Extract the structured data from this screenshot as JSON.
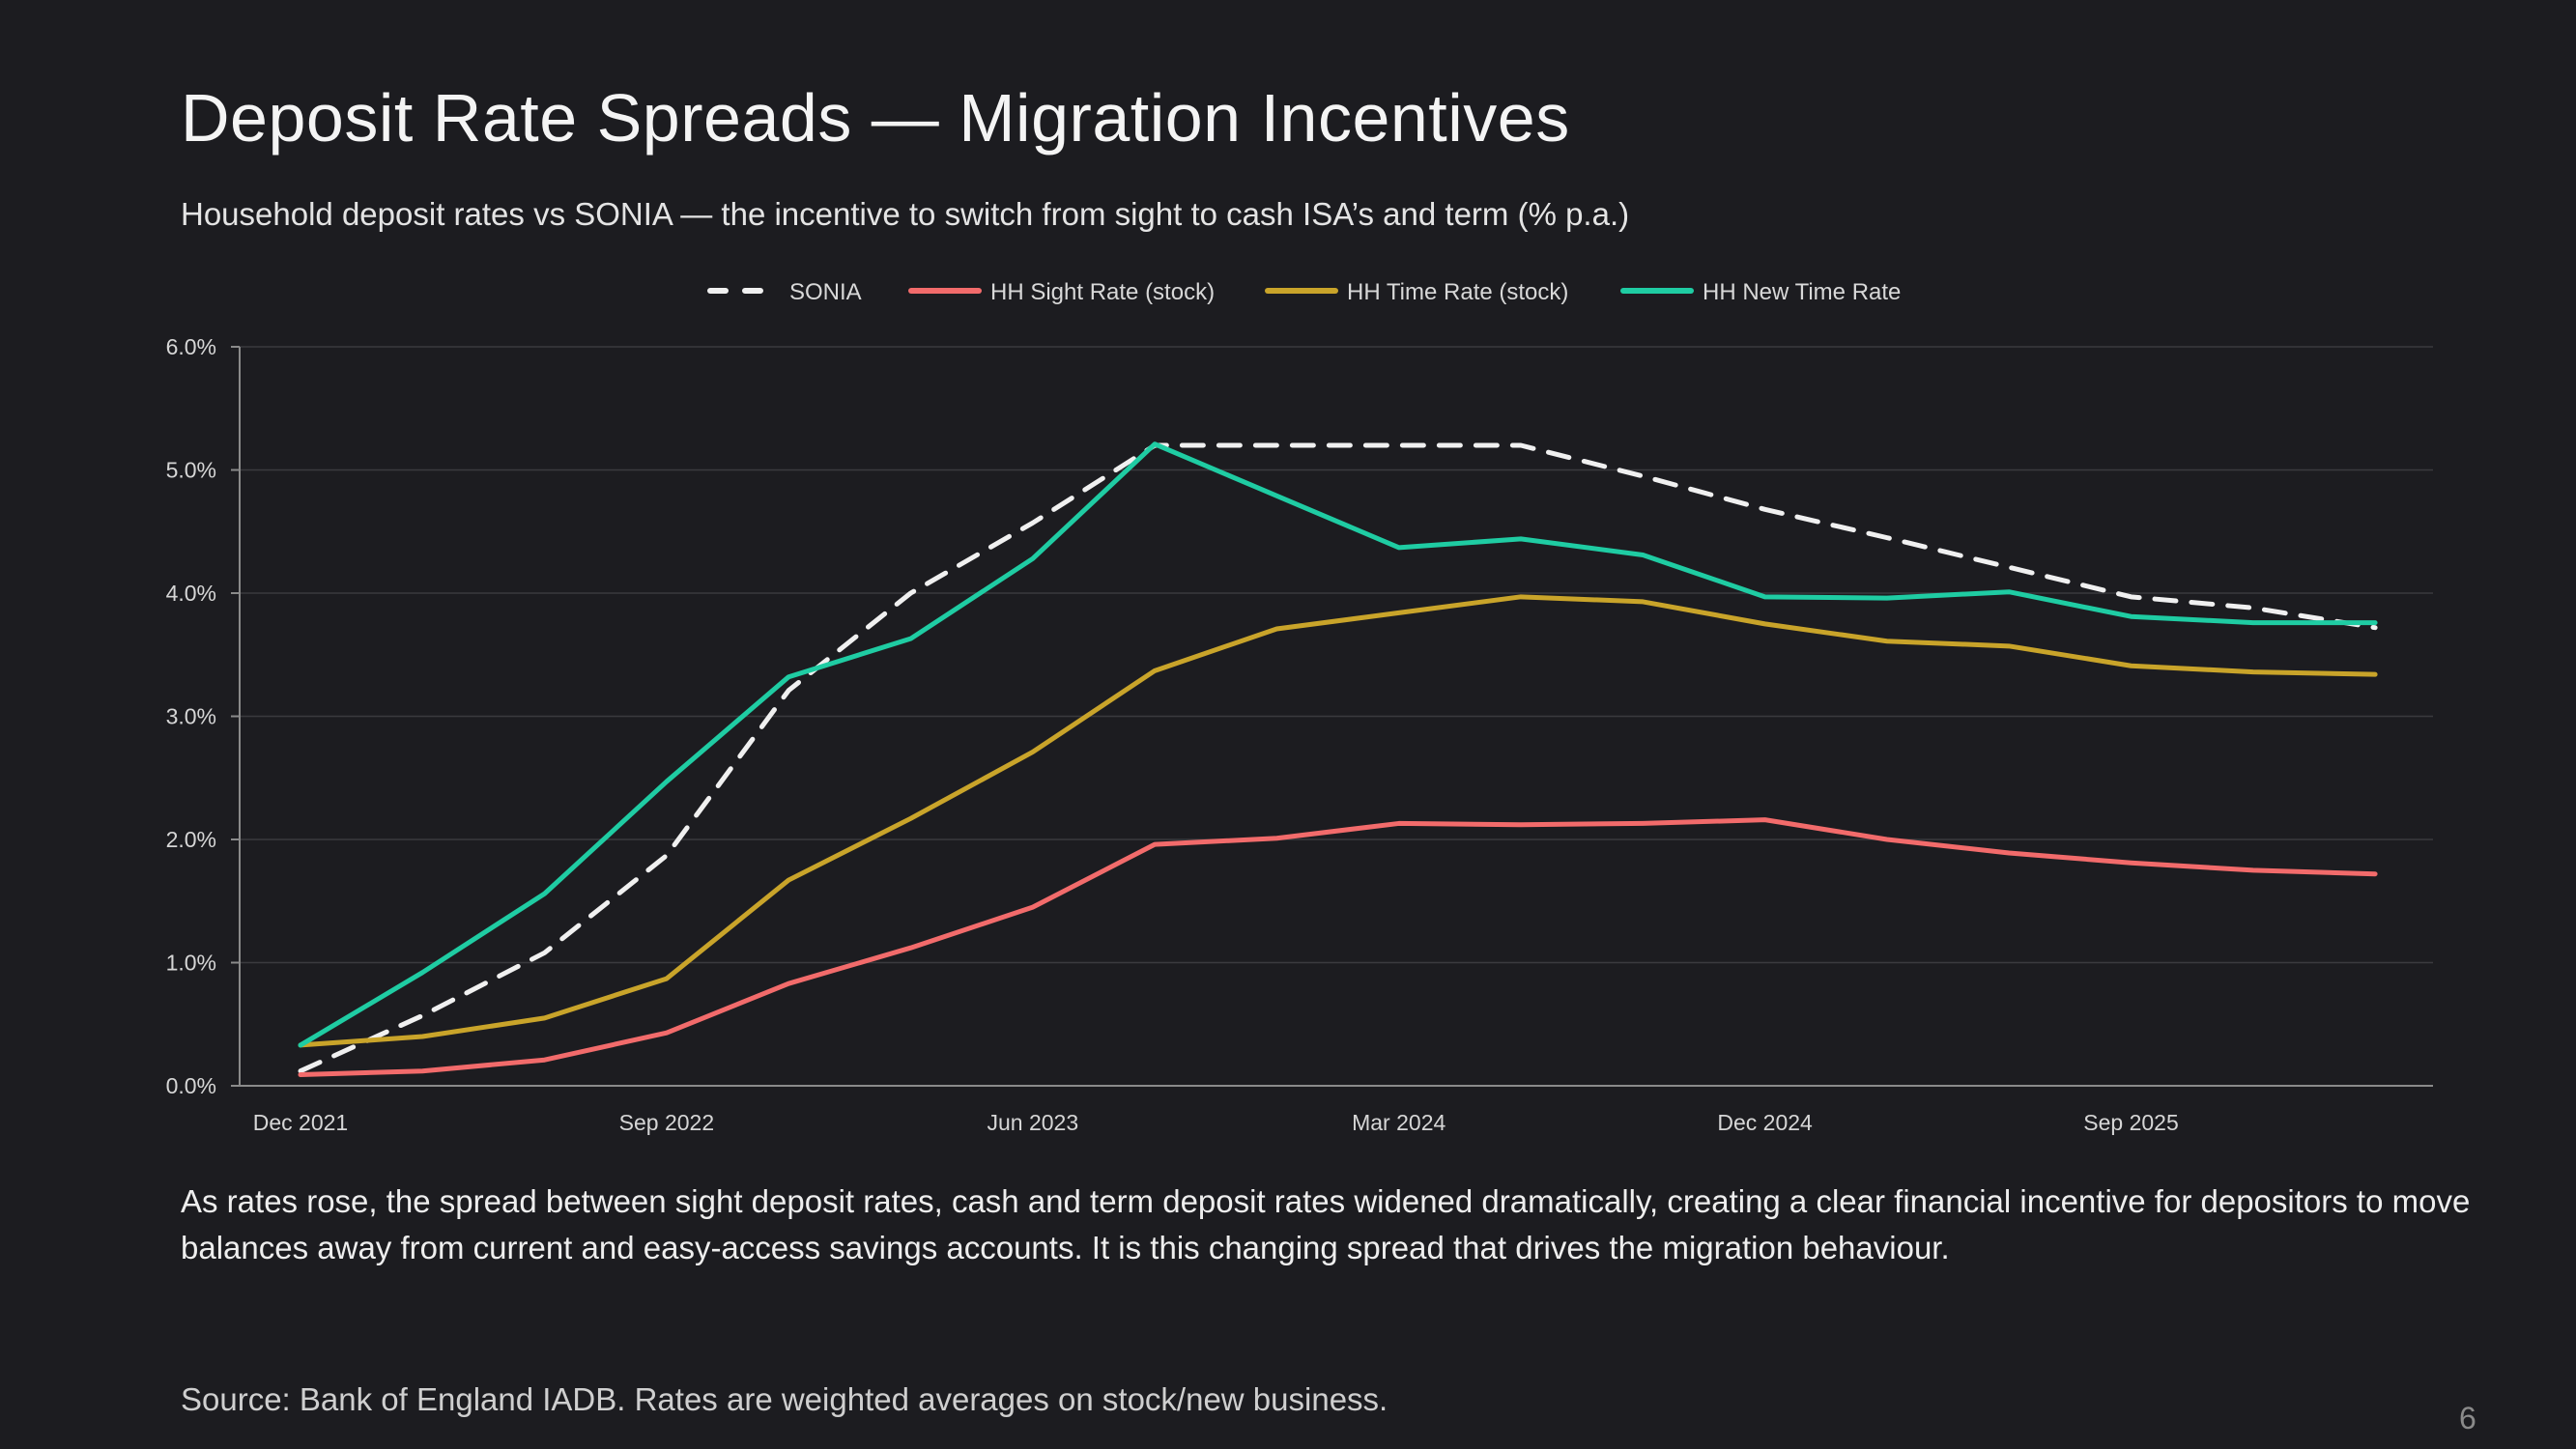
{
  "slide": {
    "title": "Deposit Rate Spreads — Migration Incentives",
    "subtitle": "Household deposit rates vs SONIA — the incentive to switch from sight to cash ISA’s and term (% p.a.)",
    "body": "As rates rose, the spread between sight deposit rates, cash and term deposit rates widened dramatically, creating a clear financial incentive for depositors to move balances away from current and easy-access savings accounts. It is this changing spread that drives the migration behaviour.",
    "source": "Source: Bank of England IADB. Rates are weighted averages on stock/new business.",
    "page_number": "6",
    "background": "#1c1c20"
  },
  "chart_data": {
    "type": "line",
    "title": "",
    "xlabel": "",
    "ylabel": "",
    "ylim": [
      0,
      6
    ],
    "yticks": [
      "0.0%",
      "1.0%",
      "2.0%",
      "3.0%",
      "4.0%",
      "5.0%",
      "6.0%"
    ],
    "grid": true,
    "legend_position": "top",
    "x": [
      "Dec 2021",
      "Mar 2022",
      "Jun 2022",
      "Sep 2022",
      "Dec 2022",
      "Mar 2023",
      "Jun 2023",
      "Sep 2023",
      "Dec 2023",
      "Mar 2024",
      "Jun 2024",
      "Sep 2024",
      "Dec 2024",
      "Mar 2025",
      "Jun 2025",
      "Sep 2025",
      "Dec 2025",
      "Mar 2026"
    ],
    "xticks": [
      "Dec 2021",
      "Sep 2022",
      "Jun 2023",
      "Mar 2024",
      "Dec 2024",
      "Sep 2025"
    ],
    "series": [
      {
        "name": "SONIA",
        "color": "#f0f0f0",
        "dash": true,
        "values": [
          0.12,
          0.57,
          1.08,
          1.87,
          3.21,
          4.0,
          4.57,
          5.2,
          5.2,
          5.2,
          5.2,
          4.95,
          4.68,
          4.45,
          4.21,
          3.97,
          3.88,
          3.72
        ]
      },
      {
        "name": "HH Sight Rate (stock)",
        "color": "#f26b6b",
        "dash": false,
        "values": [
          0.09,
          0.12,
          0.21,
          0.43,
          0.83,
          1.12,
          1.45,
          1.96,
          2.01,
          2.13,
          2.12,
          2.13,
          2.16,
          2.0,
          1.89,
          1.81,
          1.75,
          1.72
        ]
      },
      {
        "name": "HH Time Rate (stock)",
        "color": "#c9a42a",
        "dash": false,
        "values": [
          0.33,
          0.4,
          0.55,
          0.87,
          1.67,
          2.17,
          2.71,
          3.37,
          3.71,
          3.84,
          3.97,
          3.93,
          3.75,
          3.61,
          3.57,
          3.41,
          3.36,
          3.34
        ]
      },
      {
        "name": "HH New Time Rate",
        "color": "#1fcca3",
        "dash": false,
        "values": [
          0.33,
          0.92,
          1.56,
          2.47,
          3.32,
          3.63,
          4.28,
          5.21,
          4.79,
          4.37,
          4.44,
          4.31,
          3.97,
          3.96,
          4.01,
          3.81,
          3.76,
          3.76
        ]
      }
    ]
  }
}
